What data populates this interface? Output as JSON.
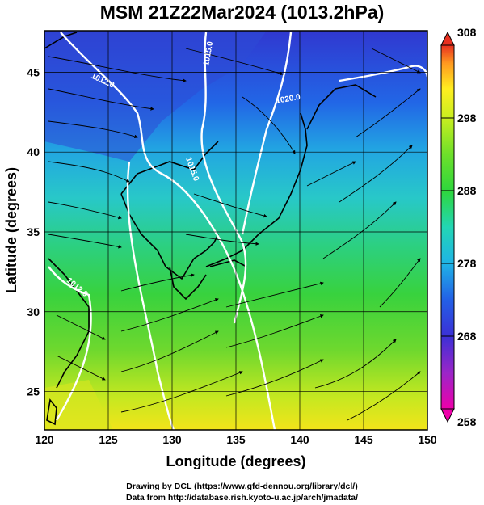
{
  "title": "MSM 21Z22Mar2024 (1013.2hPa)",
  "map": {
    "x_axis": {
      "label": "Longitude (degrees)",
      "range": [
        120,
        150
      ],
      "ticks": [
        "120",
        "125",
        "130",
        "135",
        "140",
        "145",
        "150"
      ]
    },
    "y_axis": {
      "label": "Latitude  (degrees)",
      "range": [
        22.6,
        47.6
      ],
      "ticks": [
        "25",
        "30",
        "35",
        "40",
        "45"
      ]
    },
    "grid": true,
    "isobars": [
      {
        "label": "1012.0"
      },
      {
        "label": "1015.0"
      },
      {
        "label": "1020.0"
      },
      {
        "label": "1015.0"
      },
      {
        "label": "1012.0"
      }
    ]
  },
  "colorbar": {
    "ticks": [
      "308",
      "298",
      "288",
      "278",
      "268",
      "258"
    ],
    "min": 258,
    "max": 308,
    "colors": [
      "#ee00aa",
      "#9a26c8",
      "#3b30d6",
      "#2360e6",
      "#1fb4e6",
      "#22d6b4",
      "#2ed63c",
      "#6ee02a",
      "#c8ee20",
      "#ffee20",
      "#ff9a20",
      "#e83020"
    ]
  },
  "credits": {
    "line1": "Drawing by DCL (https://www.gfd-dennou.org/library/dcl/)",
    "line2": "Data from http://database.rish.kyoto-u.ac.jp/arch/jmadata/"
  }
}
